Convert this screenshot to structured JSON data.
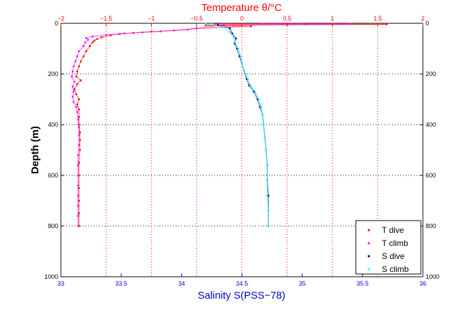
{
  "chart_data": {
    "type": "scatter",
    "ylabel": "Depth (m)",
    "y_axis": {
      "range": [
        0,
        1000
      ],
      "ticks": [
        0,
        200,
        400,
        600,
        800,
        1000
      ],
      "inverted": true,
      "labels_left_and_right": true
    },
    "bottom_axis": {
      "label": "Salinity S(PSS−78)",
      "range": [
        33,
        36
      ],
      "ticks": [
        33,
        33.5,
        34,
        34.5,
        35,
        35.5,
        36
      ],
      "tick_labels": [
        "33",
        "33.5",
        "34",
        "34.5",
        "35",
        "35.5",
        "36"
      ],
      "color": "#0000cc"
    },
    "top_axis": {
      "label": "Temperature θ/°C",
      "range": [
        -2,
        2
      ],
      "ticks": [
        -2,
        -1.5,
        -1,
        -0.5,
        0,
        0.5,
        1,
        1.5,
        2
      ],
      "tick_labels": [
        "−2",
        "−1.5",
        "−1",
        "−0.5",
        "0",
        "0.5",
        "1",
        "1.5",
        "2"
      ],
      "color": "#ff0000"
    },
    "grid": true,
    "grid_style": "dotted",
    "legend_position": "bottom-right",
    "series": [
      {
        "name": "T dive",
        "axis": "top",
        "color": "#ff0000",
        "points": [
          [
            -0.3,
            2
          ],
          [
            0.7,
            3
          ],
          [
            1.6,
            4
          ],
          [
            -0.4,
            8
          ],
          [
            0.1,
            12
          ],
          [
            -0.5,
            20
          ],
          [
            -0.75,
            28
          ],
          [
            -1.0,
            33
          ],
          [
            -1.2,
            38
          ],
          [
            -1.35,
            42
          ],
          [
            -1.45,
            47
          ],
          [
            -1.55,
            55
          ],
          [
            -1.6,
            62
          ],
          [
            -1.63,
            68
          ],
          [
            -1.65,
            75
          ],
          [
            -1.68,
            90
          ],
          [
            -1.72,
            110
          ],
          [
            -1.75,
            130
          ],
          [
            -1.78,
            150
          ],
          [
            -1.8,
            170
          ],
          [
            -1.82,
            190
          ],
          [
            -1.83,
            210
          ],
          [
            -1.78,
            225
          ],
          [
            -1.82,
            240
          ],
          [
            -1.85,
            260
          ],
          [
            -1.83,
            280
          ],
          [
            -1.8,
            300
          ],
          [
            -1.82,
            320
          ],
          [
            -1.8,
            340
          ],
          [
            -1.8,
            370
          ],
          [
            -1.8,
            400
          ],
          [
            -1.79,
            430
          ],
          [
            -1.79,
            460
          ],
          [
            -1.79,
            500
          ],
          [
            -1.8,
            550
          ],
          [
            -1.8,
            600
          ],
          [
            -1.8,
            650
          ],
          [
            -1.8,
            700
          ],
          [
            -1.8,
            750
          ],
          [
            -1.8,
            800
          ]
        ]
      },
      {
        "name": "T climb",
        "axis": "top",
        "color": "#ff00ff",
        "points": [
          [
            0.2,
            1
          ],
          [
            1.2,
            2
          ],
          [
            0.5,
            4
          ],
          [
            -0.2,
            6
          ],
          [
            -0.6,
            25
          ],
          [
            -0.9,
            32
          ],
          [
            -1.1,
            36
          ],
          [
            -1.3,
            40
          ],
          [
            -1.5,
            46
          ],
          [
            -1.65,
            52
          ],
          [
            -1.72,
            58
          ],
          [
            -1.7,
            65
          ],
          [
            -1.73,
            75
          ],
          [
            -1.75,
            90
          ],
          [
            -1.8,
            110
          ],
          [
            -1.82,
            130
          ],
          [
            -1.84,
            150
          ],
          [
            -1.86,
            170
          ],
          [
            -1.87,
            190
          ],
          [
            -1.88,
            210
          ],
          [
            -1.85,
            230
          ],
          [
            -1.87,
            250
          ],
          [
            -1.86,
            270
          ],
          [
            -1.87,
            290
          ],
          [
            -1.86,
            310
          ],
          [
            -1.83,
            330
          ],
          [
            -1.82,
            350
          ],
          [
            -1.81,
            380
          ],
          [
            -1.8,
            410
          ],
          [
            -1.8,
            440
          ],
          [
            -1.8,
            480
          ],
          [
            -1.81,
            520
          ],
          [
            -1.81,
            560
          ],
          [
            -1.81,
            600
          ],
          [
            -1.81,
            640
          ],
          [
            -1.81,
            680
          ],
          [
            -1.81,
            720
          ],
          [
            -1.81,
            760
          ],
          [
            -1.81,
            800
          ]
        ]
      },
      {
        "name": "S dive",
        "axis": "bottom",
        "color": "#000080",
        "points": [
          [
            34.3,
            5
          ],
          [
            34.4,
            20
          ],
          [
            34.42,
            40
          ],
          [
            34.45,
            60
          ],
          [
            34.44,
            80
          ],
          [
            34.46,
            100
          ],
          [
            34.48,
            130
          ],
          [
            34.5,
            160
          ],
          [
            34.52,
            190
          ],
          [
            34.54,
            220
          ],
          [
            34.56,
            245
          ],
          [
            34.6,
            270
          ],
          [
            34.63,
            300
          ],
          [
            34.65,
            330
          ],
          [
            34.67,
            360
          ],
          [
            34.68,
            400
          ],
          [
            34.69,
            450
          ],
          [
            34.7,
            500
          ],
          [
            34.71,
            560
          ],
          [
            34.71,
            620
          ],
          [
            34.72,
            680
          ],
          [
            34.72,
            740
          ],
          [
            34.72,
            800
          ]
        ]
      },
      {
        "name": "S climb",
        "axis": "bottom",
        "color": "#00ffff",
        "points": [
          [
            34.2,
            2
          ],
          [
            34.35,
            15
          ],
          [
            34.4,
            35
          ],
          [
            34.43,
            55
          ],
          [
            34.44,
            75
          ],
          [
            34.47,
            100
          ],
          [
            34.49,
            130
          ],
          [
            34.5,
            160
          ],
          [
            34.52,
            190
          ],
          [
            34.55,
            220
          ],
          [
            34.57,
            245
          ],
          [
            34.61,
            270
          ],
          [
            34.64,
            300
          ],
          [
            34.66,
            330
          ],
          [
            34.67,
            360
          ],
          [
            34.68,
            400
          ],
          [
            34.69,
            450
          ],
          [
            34.7,
            500
          ],
          [
            34.71,
            560
          ],
          [
            34.71,
            620
          ],
          [
            34.71,
            680
          ],
          [
            34.72,
            740
          ],
          [
            34.72,
            800
          ]
        ]
      }
    ]
  }
}
